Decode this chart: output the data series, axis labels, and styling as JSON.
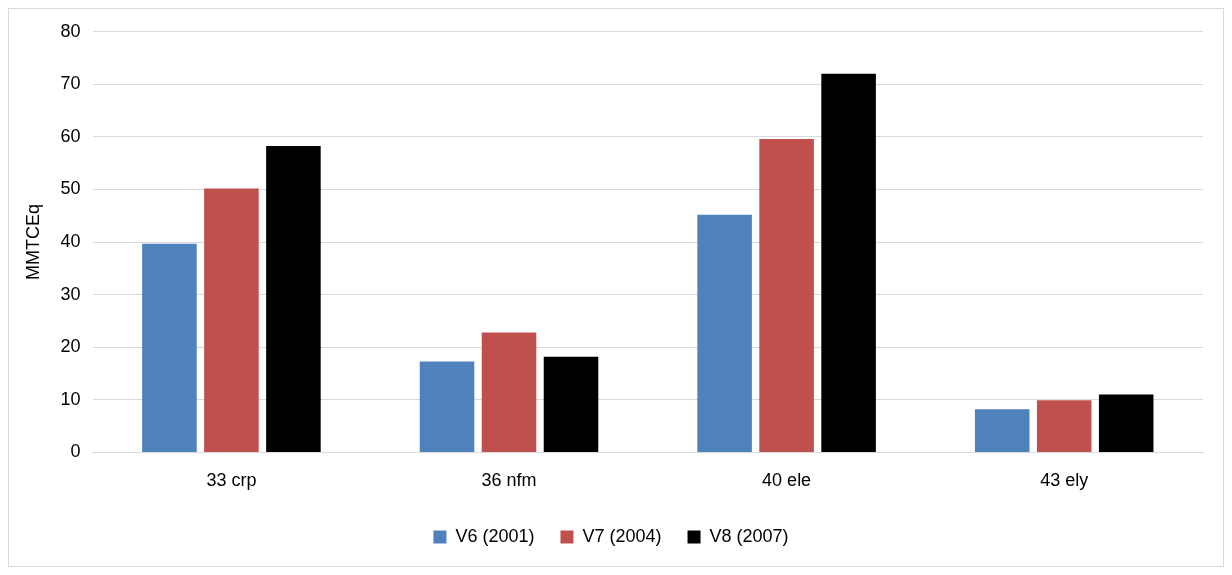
{
  "chart_data": {
    "type": "bar",
    "ylabel": "MMTCEq",
    "categories": [
      "33 crp",
      "36 nfm",
      "40 ele",
      "43 ely"
    ],
    "series": [
      {
        "name": "V6 (2001)",
        "color": "#4f81bd",
        "values": [
          39.7,
          17.3,
          45.2,
          8.2
        ]
      },
      {
        "name": "V7 (2004)",
        "color": "#c0504d",
        "values": [
          50.2,
          22.8,
          59.6,
          9.9
        ]
      },
      {
        "name": "V8 (2007)",
        "color": "#000000",
        "values": [
          58.3,
          18.2,
          72.0,
          11.0
        ]
      }
    ],
    "ylim": [
      0,
      80
    ],
    "yticks": [
      0,
      10,
      20,
      30,
      40,
      50,
      60,
      70,
      80
    ],
    "grid": "y",
    "legend": "bottom"
  }
}
